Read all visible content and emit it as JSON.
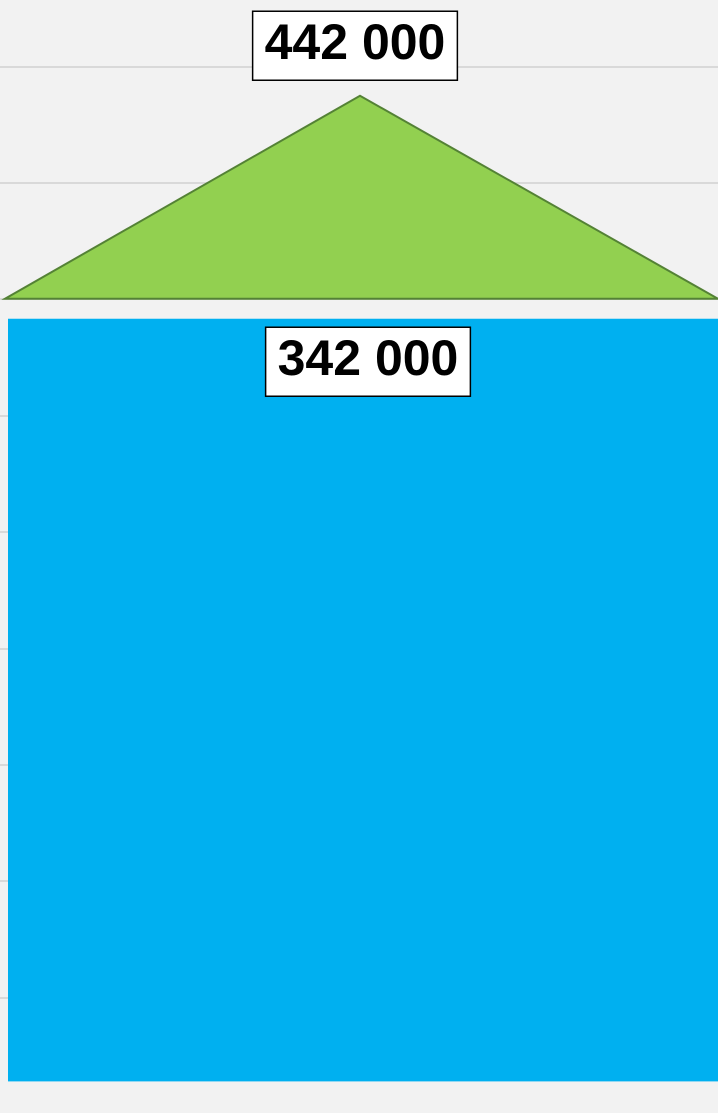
{
  "chart_data": {
    "type": "bar",
    "values": [
      342000
    ],
    "value_labels": [
      "342 000"
    ],
    "color": "#00b0f0",
    "target_values": [
      442000
    ],
    "target_labels": [
      "442 000"
    ],
    "target_color": "#92d050",
    "ylim": [
      -20000,
      480000
    ],
    "grid": true
  }
}
